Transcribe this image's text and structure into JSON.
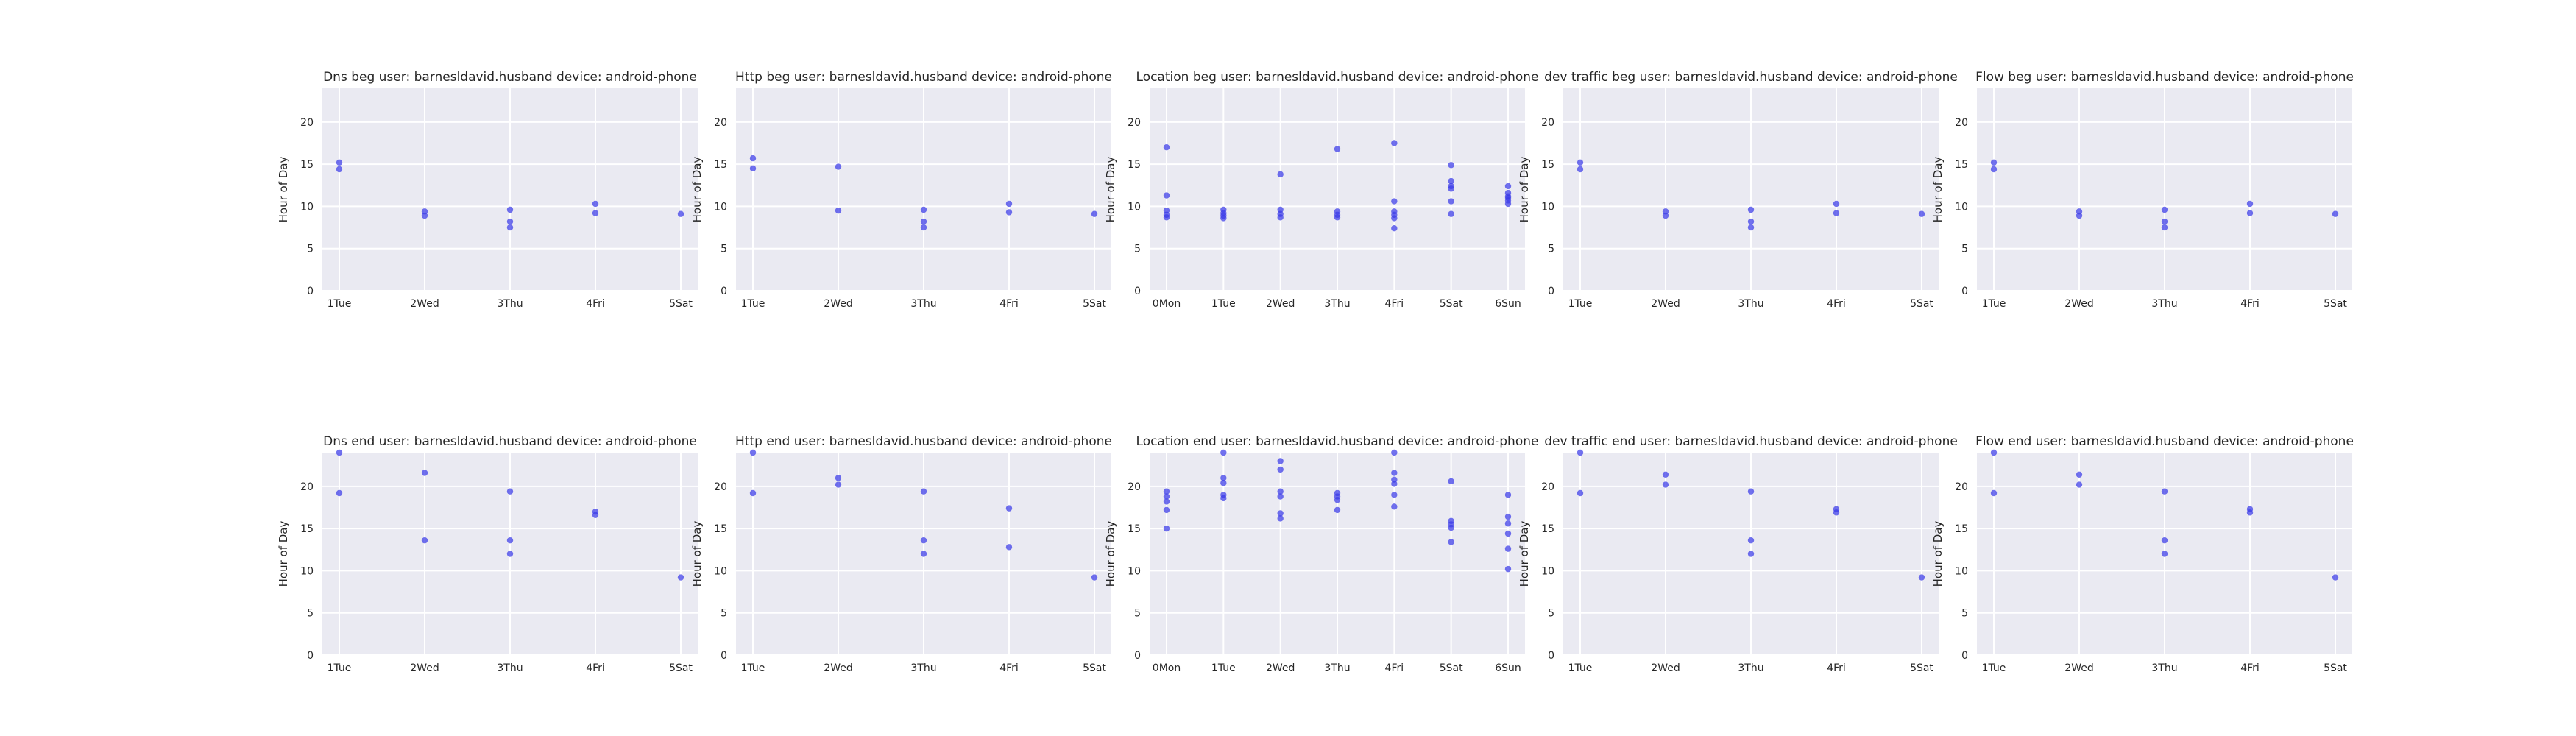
{
  "chart_data": [
    {
      "type": "scatter",
      "title": "Dns beg user: barnesldavid.husband device: android-phone",
      "ylabel": "Hour of Day",
      "ylim": [
        0,
        24
      ],
      "yticks": [
        "0",
        "5",
        "10",
        "15",
        "20"
      ],
      "categories": [
        "1Tue",
        "2Wed",
        "3Thu",
        "4Fri",
        "5Sat"
      ],
      "grid": true,
      "points": [
        [
          "1Tue",
          15.2
        ],
        [
          "1Tue",
          14.4
        ],
        [
          "2Wed",
          9.4
        ],
        [
          "2Wed",
          8.9
        ],
        [
          "3Thu",
          9.6
        ],
        [
          "3Thu",
          8.2
        ],
        [
          "3Thu",
          7.5
        ],
        [
          "4Fri",
          10.3
        ],
        [
          "4Fri",
          9.2
        ],
        [
          "5Sat",
          9.1
        ]
      ]
    },
    {
      "type": "scatter",
      "title": "Http beg user: barnesldavid.husband device: android-phone",
      "ylabel": "Hour of Day",
      "ylim": [
        0,
        24
      ],
      "yticks": [
        "0",
        "5",
        "10",
        "15",
        "20"
      ],
      "categories": [
        "1Tue",
        "2Wed",
        "3Thu",
        "4Fri",
        "5Sat"
      ],
      "grid": true,
      "points": [
        [
          "1Tue",
          15.7
        ],
        [
          "1Tue",
          14.5
        ],
        [
          "2Wed",
          14.7
        ],
        [
          "2Wed",
          9.5
        ],
        [
          "3Thu",
          9.6
        ],
        [
          "3Thu",
          8.2
        ],
        [
          "3Thu",
          7.5
        ],
        [
          "4Fri",
          10.3
        ],
        [
          "4Fri",
          9.3
        ],
        [
          "5Sat",
          9.1
        ]
      ]
    },
    {
      "type": "scatter",
      "title": "Location beg user: barnesldavid.husband device: android-phone",
      "ylabel": "Hour of Day",
      "ylim": [
        0,
        24
      ],
      "yticks": [
        "0",
        "5",
        "10",
        "15",
        "20"
      ],
      "categories": [
        "0Mon",
        "1Tue",
        "2Wed",
        "3Thu",
        "4Fri",
        "5Sat",
        "6Sun"
      ],
      "grid": true,
      "points": [
        [
          "0Mon",
          17.0
        ],
        [
          "0Mon",
          11.3
        ],
        [
          "0Mon",
          9.5
        ],
        [
          "0Mon",
          9.0
        ],
        [
          "0Mon",
          8.7
        ],
        [
          "1Tue",
          9.6
        ],
        [
          "1Tue",
          9.2
        ],
        [
          "1Tue",
          8.9
        ],
        [
          "1Tue",
          8.6
        ],
        [
          "2Wed",
          13.8
        ],
        [
          "2Wed",
          9.6
        ],
        [
          "2Wed",
          9.1
        ],
        [
          "2Wed",
          8.7
        ],
        [
          "3Thu",
          16.8
        ],
        [
          "3Thu",
          9.4
        ],
        [
          "3Thu",
          9.0
        ],
        [
          "3Thu",
          8.7
        ],
        [
          "4Fri",
          17.5
        ],
        [
          "4Fri",
          10.6
        ],
        [
          "4Fri",
          9.4
        ],
        [
          "4Fri",
          9.0
        ],
        [
          "4Fri",
          8.6
        ],
        [
          "4Fri",
          7.4
        ],
        [
          "5Sat",
          14.9
        ],
        [
          "5Sat",
          13.0
        ],
        [
          "5Sat",
          12.4
        ],
        [
          "5Sat",
          12.1
        ],
        [
          "5Sat",
          10.6
        ],
        [
          "5Sat",
          9.1
        ],
        [
          "6Sun",
          12.4
        ],
        [
          "6Sun",
          11.6
        ],
        [
          "6Sun",
          11.2
        ],
        [
          "6Sun",
          11.0
        ],
        [
          "6Sun",
          10.7
        ],
        [
          "6Sun",
          10.3
        ]
      ]
    },
    {
      "type": "scatter",
      "title": "dev traffic beg user: barnesldavid.husband device: android-phone",
      "ylabel": "Hour of Day",
      "ylim": [
        0,
        24
      ],
      "yticks": [
        "0",
        "5",
        "10",
        "15",
        "20"
      ],
      "categories": [
        "1Tue",
        "2Wed",
        "3Thu",
        "4Fri",
        "5Sat"
      ],
      "grid": true,
      "points": [
        [
          "1Tue",
          15.2
        ],
        [
          "1Tue",
          14.4
        ],
        [
          "2Wed",
          9.4
        ],
        [
          "2Wed",
          8.9
        ],
        [
          "3Thu",
          9.6
        ],
        [
          "3Thu",
          8.2
        ],
        [
          "3Thu",
          7.5
        ],
        [
          "4Fri",
          10.3
        ],
        [
          "4Fri",
          9.2
        ],
        [
          "5Sat",
          9.1
        ]
      ]
    },
    {
      "type": "scatter",
      "title": "Flow beg user: barnesldavid.husband device: android-phone",
      "ylabel": "Hour of Day",
      "ylim": [
        0,
        24
      ],
      "yticks": [
        "0",
        "5",
        "10",
        "15",
        "20"
      ],
      "categories": [
        "1Tue",
        "2Wed",
        "3Thu",
        "4Fri",
        "5Sat"
      ],
      "grid": true,
      "points": [
        [
          "1Tue",
          15.2
        ],
        [
          "1Tue",
          14.4
        ],
        [
          "2Wed",
          9.4
        ],
        [
          "2Wed",
          8.9
        ],
        [
          "3Thu",
          9.6
        ],
        [
          "3Thu",
          8.2
        ],
        [
          "3Thu",
          7.5
        ],
        [
          "4Fri",
          10.3
        ],
        [
          "4Fri",
          9.2
        ],
        [
          "5Sat",
          9.1
        ]
      ]
    },
    {
      "type": "scatter",
      "title": "Dns end user: barnesldavid.husband device: android-phone",
      "ylabel": "Hour of Day",
      "ylim": [
        0,
        24
      ],
      "yticks": [
        "0",
        "5",
        "10",
        "15",
        "20"
      ],
      "categories": [
        "1Tue",
        "2Wed",
        "3Thu",
        "4Fri",
        "5Sat"
      ],
      "grid": true,
      "points": [
        [
          "1Tue",
          24.0
        ],
        [
          "1Tue",
          19.2
        ],
        [
          "2Wed",
          21.6
        ],
        [
          "2Wed",
          13.6
        ],
        [
          "3Thu",
          19.4
        ],
        [
          "3Thu",
          13.6
        ],
        [
          "3Thu",
          12.0
        ],
        [
          "4Fri",
          17.0
        ],
        [
          "4Fri",
          16.6
        ],
        [
          "5Sat",
          9.2
        ]
      ]
    },
    {
      "type": "scatter",
      "title": "Http end user: barnesldavid.husband device: android-phone",
      "ylabel": "Hour of Day",
      "ylim": [
        0,
        24
      ],
      "yticks": [
        "0",
        "5",
        "10",
        "15",
        "20"
      ],
      "categories": [
        "1Tue",
        "2Wed",
        "3Thu",
        "4Fri",
        "5Sat"
      ],
      "grid": true,
      "points": [
        [
          "1Tue",
          24.0
        ],
        [
          "1Tue",
          19.2
        ],
        [
          "2Wed",
          21.0
        ],
        [
          "2Wed",
          20.2
        ],
        [
          "3Thu",
          19.4
        ],
        [
          "3Thu",
          13.6
        ],
        [
          "3Thu",
          12.0
        ],
        [
          "4Fri",
          17.4
        ],
        [
          "4Fri",
          12.8
        ],
        [
          "5Sat",
          9.2
        ]
      ]
    },
    {
      "type": "scatter",
      "title": "Location end user: barnesldavid.husband device: android-phone",
      "ylabel": "Hour of Day",
      "ylim": [
        0,
        24
      ],
      "yticks": [
        "0",
        "5",
        "10",
        "15",
        "20"
      ],
      "categories": [
        "0Mon",
        "1Tue",
        "2Wed",
        "3Thu",
        "4Fri",
        "5Sat",
        "6Sun"
      ],
      "grid": true,
      "points": [
        [
          "0Mon",
          19.4
        ],
        [
          "0Mon",
          18.8
        ],
        [
          "0Mon",
          18.2
        ],
        [
          "0Mon",
          17.2
        ],
        [
          "0Mon",
          15.0
        ],
        [
          "1Tue",
          24.0
        ],
        [
          "1Tue",
          21.0
        ],
        [
          "1Tue",
          20.4
        ],
        [
          "1Tue",
          19.0
        ],
        [
          "1Tue",
          18.6
        ],
        [
          "2Wed",
          23.0
        ],
        [
          "2Wed",
          22.0
        ],
        [
          "2Wed",
          19.4
        ],
        [
          "2Wed",
          18.8
        ],
        [
          "2Wed",
          16.8
        ],
        [
          "2Wed",
          16.2
        ],
        [
          "3Thu",
          19.2
        ],
        [
          "3Thu",
          18.8
        ],
        [
          "3Thu",
          18.4
        ],
        [
          "3Thu",
          17.2
        ],
        [
          "4Fri",
          24.0
        ],
        [
          "4Fri",
          21.6
        ],
        [
          "4Fri",
          20.8
        ],
        [
          "4Fri",
          20.3
        ],
        [
          "4Fri",
          19.0
        ],
        [
          "4Fri",
          17.6
        ],
        [
          "5Sat",
          20.6
        ],
        [
          "5Sat",
          15.9
        ],
        [
          "5Sat",
          15.5
        ],
        [
          "5Sat",
          15.1
        ],
        [
          "5Sat",
          13.4
        ],
        [
          "6Sun",
          19.0
        ],
        [
          "6Sun",
          16.4
        ],
        [
          "6Sun",
          15.6
        ],
        [
          "6Sun",
          14.4
        ],
        [
          "6Sun",
          12.6
        ],
        [
          "6Sun",
          10.2
        ]
      ]
    },
    {
      "type": "scatter",
      "title": "dev traffic end user: barnesldavid.husband device: android-phone",
      "ylabel": "Hour of Day",
      "ylim": [
        0,
        24
      ],
      "yticks": [
        "0",
        "5",
        "10",
        "15",
        "20"
      ],
      "categories": [
        "1Tue",
        "2Wed",
        "3Thu",
        "4Fri",
        "5Sat"
      ],
      "grid": true,
      "points": [
        [
          "1Tue",
          24.0
        ],
        [
          "1Tue",
          19.2
        ],
        [
          "2Wed",
          21.4
        ],
        [
          "2Wed",
          20.2
        ],
        [
          "3Thu",
          19.4
        ],
        [
          "3Thu",
          13.6
        ],
        [
          "3Thu",
          12.0
        ],
        [
          "4Fri",
          17.3
        ],
        [
          "4Fri",
          16.9
        ],
        [
          "5Sat",
          9.2
        ]
      ]
    },
    {
      "type": "scatter",
      "title": "Flow end user: barnesldavid.husband device: android-phone",
      "ylabel": "Hour of Day",
      "ylim": [
        0,
        24
      ],
      "yticks": [
        "0",
        "5",
        "10",
        "15",
        "20"
      ],
      "categories": [
        "1Tue",
        "2Wed",
        "3Thu",
        "4Fri",
        "5Sat"
      ],
      "grid": true,
      "points": [
        [
          "1Tue",
          24.0
        ],
        [
          "1Tue",
          19.2
        ],
        [
          "2Wed",
          21.4
        ],
        [
          "2Wed",
          20.2
        ],
        [
          "3Thu",
          19.4
        ],
        [
          "3Thu",
          13.6
        ],
        [
          "3Thu",
          12.0
        ],
        [
          "4Fri",
          17.3
        ],
        [
          "4Fri",
          16.9
        ],
        [
          "5Sat",
          9.2
        ]
      ]
    }
  ]
}
